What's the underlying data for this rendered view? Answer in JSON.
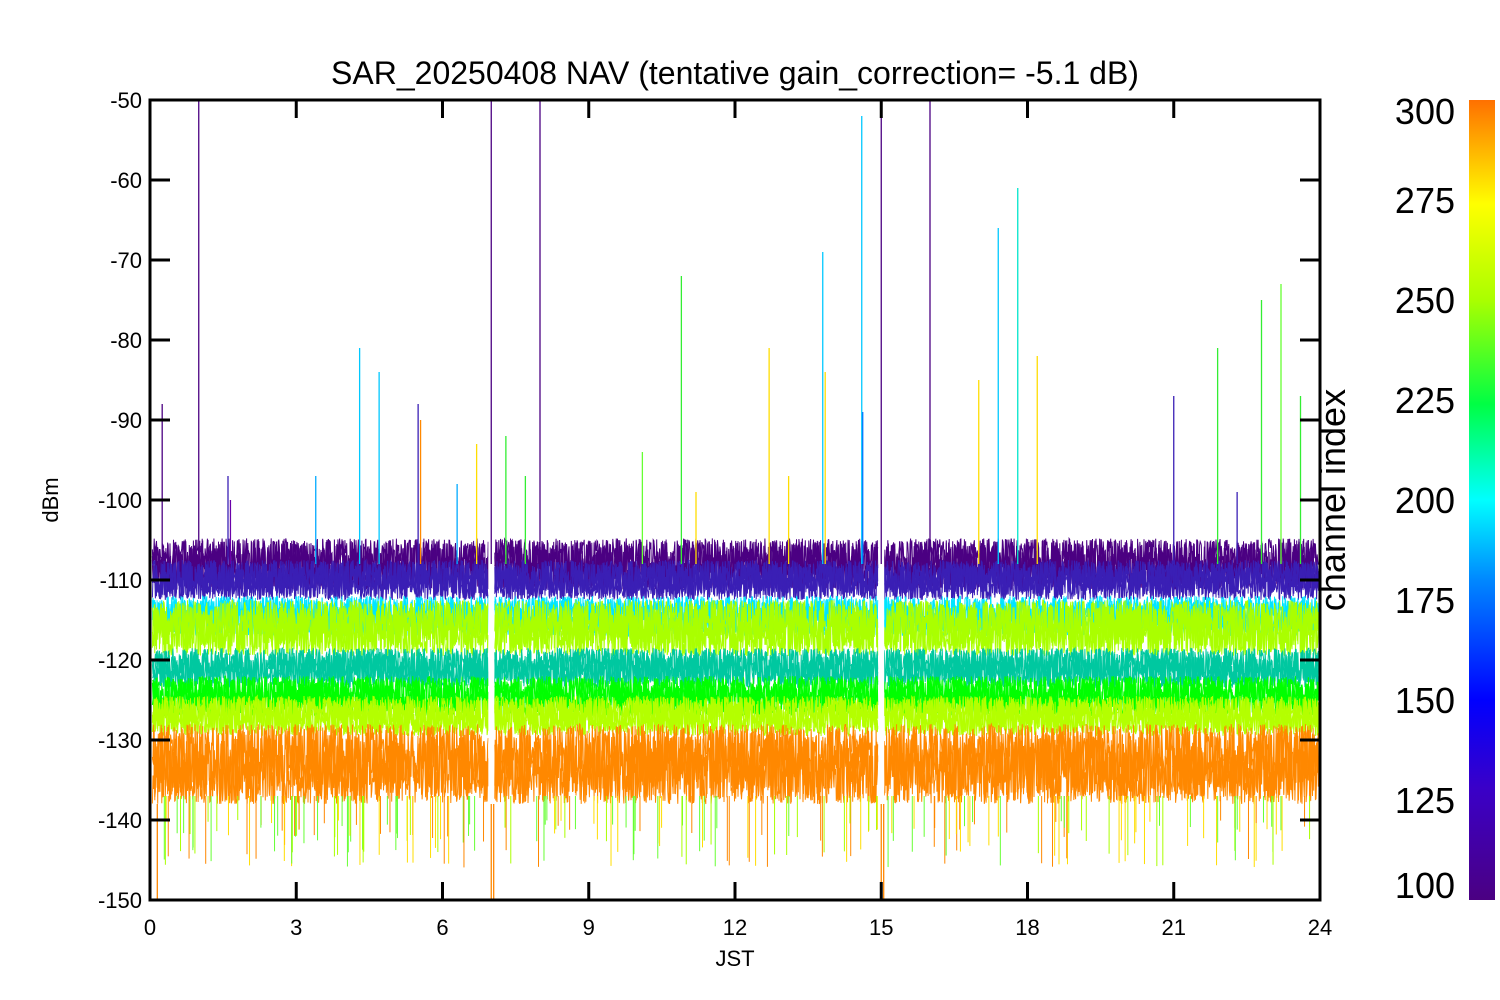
{
  "chart_data": {
    "type": "line",
    "title": "SAR_20250408 NAV (tentative gain_correction= -5.1 dB)",
    "xlabel": "JST",
    "ylabel": "dBm",
    "xlim": [
      0,
      24
    ],
    "ylim": [
      -150,
      -50
    ],
    "x_ticks": [
      "0",
      "3",
      "6",
      "9",
      "12",
      "15",
      "18",
      "21",
      "24"
    ],
    "y_ticks": [
      "-50",
      "-60",
      "-70",
      "-80",
      "-90",
      "-100",
      "-110",
      "-120",
      "-130",
      "-140",
      "-150"
    ],
    "colorbar": {
      "label": "channel index",
      "range": [
        100,
        300
      ],
      "ticks": [
        "100",
        "125",
        "150",
        "175",
        "200",
        "225",
        "250",
        "275",
        "300"
      ],
      "colormap": "rainbow (purple-blue-cyan-green-yellow-orange)"
    },
    "bands": [
      {
        "channel": 105,
        "color": "#4b0082",
        "center": -108,
        "spread": 3.2
      },
      {
        "channel": 120,
        "color": "#3a1fb5",
        "center": -110,
        "spread": 2.5
      },
      {
        "channel": 175,
        "color": "#00e5ff",
        "center": -114.5,
        "spread": 2.5
      },
      {
        "channel": 255,
        "color": "#aaff00",
        "center": -116,
        "spread": 3.5
      },
      {
        "channel": 200,
        "color": "#00c8a0",
        "center": -121,
        "spread": 2.5
      },
      {
        "channel": 225,
        "color": "#00ff00",
        "center": -124.5,
        "spread": 2.5
      },
      {
        "channel": 250,
        "color": "#b4ff00",
        "center": -127,
        "spread": 2.5
      },
      {
        "channel": 290,
        "color": "#ff8800",
        "center": -133,
        "spread": 5.0
      }
    ],
    "gaps_at_JST": [
      7.0,
      15.0
    ],
    "spikes": [
      {
        "x": 0.25,
        "peak": -88,
        "color": "#4b0082"
      },
      {
        "x": 1.0,
        "peak": -50,
        "color": "#4b0082"
      },
      {
        "x": 1.6,
        "peak": -97,
        "color": "#3a1fb5"
      },
      {
        "x": 1.65,
        "peak": -100,
        "color": "#6a00a8"
      },
      {
        "x": 3.4,
        "peak": -97,
        "color": "#00aaff"
      },
      {
        "x": 4.3,
        "peak": -81,
        "color": "#00c8ff"
      },
      {
        "x": 4.7,
        "peak": -84,
        "color": "#00c8ff"
      },
      {
        "x": 5.5,
        "peak": -88,
        "color": "#3a1fb5"
      },
      {
        "x": 5.55,
        "peak": -90,
        "color": "#ff8800"
      },
      {
        "x": 6.3,
        "peak": -98,
        "color": "#00aaff"
      },
      {
        "x": 6.7,
        "peak": -93,
        "color": "#ffdd00"
      },
      {
        "x": 7.0,
        "peak": -50,
        "color": "#4b0082"
      },
      {
        "x": 7.3,
        "peak": -92,
        "color": "#33ee33"
      },
      {
        "x": 7.7,
        "peak": -97,
        "color": "#33ee33"
      },
      {
        "x": 8.0,
        "peak": -50,
        "color": "#4b0082"
      },
      {
        "x": 10.1,
        "peak": -94,
        "color": "#66ff33"
      },
      {
        "x": 10.9,
        "peak": -72,
        "color": "#33ee33"
      },
      {
        "x": 11.2,
        "peak": -99,
        "color": "#ffdd00"
      },
      {
        "x": 12.7,
        "peak": -81,
        "color": "#ffdd00"
      },
      {
        "x": 13.1,
        "peak": -97,
        "color": "#ffdd00"
      },
      {
        "x": 13.8,
        "peak": -69,
        "color": "#00c8ff"
      },
      {
        "x": 13.85,
        "peak": -84,
        "color": "#ffdd00"
      },
      {
        "x": 14.6,
        "peak": -52,
        "color": "#00c8ff"
      },
      {
        "x": 14.62,
        "peak": -89,
        "color": "#0077ff"
      },
      {
        "x": 15.0,
        "peak": -50,
        "color": "#4b0082"
      },
      {
        "x": 16.0,
        "peak": -50,
        "color": "#4b0082"
      },
      {
        "x": 17.0,
        "peak": -85,
        "color": "#ffdd00"
      },
      {
        "x": 17.4,
        "peak": -66,
        "color": "#00c8ff"
      },
      {
        "x": 17.8,
        "peak": -61,
        "color": "#00e5cc"
      },
      {
        "x": 18.2,
        "peak": -82,
        "color": "#ffdd00"
      },
      {
        "x": 21.0,
        "peak": -87,
        "color": "#3a1fb5"
      },
      {
        "x": 21.9,
        "peak": -81,
        "color": "#33ee33"
      },
      {
        "x": 22.3,
        "peak": -99,
        "color": "#3a1fb5"
      },
      {
        "x": 22.8,
        "peak": -75,
        "color": "#33ee33"
      },
      {
        "x": 23.2,
        "peak": -73,
        "color": "#66ff33"
      },
      {
        "x": 23.6,
        "peak": -87,
        "color": "#33ee33"
      }
    ],
    "low_spikes": [
      {
        "x": 0.15,
        "low": -150,
        "color": "#ff8800"
      },
      {
        "x": 7.0,
        "low": -150,
        "color": "#ff8800"
      },
      {
        "x": 7.05,
        "low": -150,
        "color": "#ff8800"
      },
      {
        "x": 15.0,
        "low": -150,
        "color": "#ff8800"
      },
      {
        "x": 15.05,
        "low": -150,
        "color": "#ff8800"
      }
    ]
  }
}
